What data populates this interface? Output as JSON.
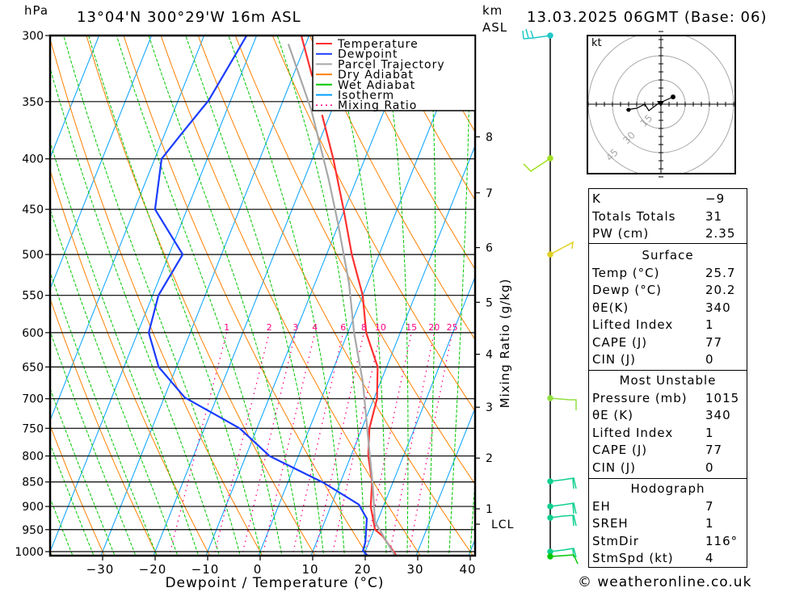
{
  "header": {
    "pressure_unit": "hPa",
    "location": "13°04'N 300°29'W 16m ASL",
    "height_unit": "km",
    "height_ref": "ASL",
    "datetime": "13.03.2025 06GMT (Base: 06)"
  },
  "chart_data": {
    "type": "line",
    "title": "13°04'N 300°29'W 16m ASL",
    "xlabel": "Dewpoint / Temperature (°C)",
    "ylabel": "hPa",
    "right_label": "Mixing Ratio (g/kg)",
    "pressure_ticks": [
      "300",
      "350",
      "400",
      "450",
      "500",
      "550",
      "600",
      "650",
      "700",
      "750",
      "800",
      "850",
      "900",
      "950",
      "1000"
    ],
    "temp_ticks": [
      "−30",
      "−20",
      "−10",
      "0",
      "10",
      "20",
      "30",
      "40"
    ],
    "temp_tick_values": [
      -30,
      -20,
      -10,
      0,
      10,
      20,
      30,
      40
    ],
    "xlim": [
      -40,
      41
    ],
    "ylim_hpa": [
      1010,
      300
    ],
    "grid": true,
    "legend_position": "top-right",
    "legend": [
      {
        "name": "Temperature",
        "color": "#ff3030",
        "style": "solid"
      },
      {
        "name": "Dewpoint",
        "color": "#1a3cff",
        "style": "solid"
      },
      {
        "name": "Parcel Trajectory",
        "color": "#a8a8a8",
        "style": "solid"
      },
      {
        "name": "Dry Adiabat",
        "color": "#ff8000",
        "style": "solid"
      },
      {
        "name": "Wet Adiabat",
        "color": "#00c800",
        "style": "solid"
      },
      {
        "name": "Isotherm",
        "color": "#00a0ff",
        "style": "solid"
      },
      {
        "name": "Mixing Ratio",
        "color": "#ff0080",
        "style": "dotted"
      }
    ],
    "series": [
      {
        "name": "Temperature",
        "color": "#ff3030",
        "segments": [
          [
            [
              300,
              -31.5
            ],
            [
              330,
              -26.3
            ]
          ],
          [
            [
              361,
              -21.5
            ],
            [
              400,
              -16.0
            ],
            [
              450,
              -10.2
            ],
            [
              500,
              -5.2
            ],
            [
              550,
              0.0
            ],
            [
              600,
              3.5
            ],
            [
              650,
              8.3
            ],
            [
              700,
              10.6
            ],
            [
              750,
              11.4
            ],
            [
              800,
              13.3
            ],
            [
              850,
              16.0
            ],
            [
              900,
              17.6
            ],
            [
              950,
              20.2
            ],
            [
              965,
              22.2
            ],
            [
              1010,
              26.3
            ]
          ]
        ]
      },
      {
        "name": "Dewpoint",
        "color": "#1a3cff",
        "segments": [
          [
            [
              300,
              -41.9
            ],
            [
              349,
              -44.2
            ],
            [
              376,
              -46.7
            ],
            [
              400,
              -48.7
            ],
            [
              450,
              -46.1
            ],
            [
              500,
              -37.4
            ],
            [
              550,
              -38.9
            ],
            [
              600,
              -37.9
            ],
            [
              650,
              -33.4
            ],
            [
              698,
              -26.1
            ],
            [
              750,
              -13.3
            ],
            [
              800,
              -5.5
            ],
            [
              852,
              6.9
            ],
            [
              896,
              15.2
            ],
            [
              926,
              17.8
            ],
            [
              978,
              19.3
            ],
            [
              998,
              19.5
            ],
            [
              1010,
              20.8
            ]
          ]
        ]
      },
      {
        "name": "Parcel Trajectory",
        "color": "#a8a8a8",
        "segments": [
          [
            [
              306,
              -33.3
            ],
            [
              357,
              -23.9
            ],
            [
              419,
              -15.4
            ],
            [
              464,
              -10.3
            ],
            [
              535,
              -3.5
            ],
            [
              600,
              1.2
            ],
            [
              673,
              6.6
            ],
            [
              771,
              12.1
            ],
            [
              855,
              16.3
            ],
            [
              933,
              19.6
            ],
            [
              947,
              20.8
            ],
            [
              1010,
              26.0
            ]
          ]
        ]
      }
    ],
    "mixing_ratio_labels": [
      "1",
      "2",
      "3",
      "4",
      "6",
      "8",
      "10",
      "15",
      "20",
      "25"
    ],
    "mixing_ratio_values": [
      1,
      2,
      3,
      4,
      6,
      8,
      10,
      15,
      20,
      25
    ],
    "km_ticks": [
      {
        "label": "8",
        "p": 380
      },
      {
        "label": "7",
        "p": 433
      },
      {
        "label": "6",
        "p": 492
      },
      {
        "label": "5",
        "p": 559
      },
      {
        "label": "4",
        "p": 631
      },
      {
        "label": "3",
        "p": 714
      },
      {
        "label": "2",
        "p": 804
      },
      {
        "label": "1",
        "p": 905
      },
      {
        "label": "LCL",
        "p": 938
      }
    ]
  },
  "hodograph": {
    "unit": "kt",
    "ring_labels": [
      "15",
      "30",
      "45"
    ],
    "ring_values": [
      15,
      30,
      45
    ],
    "trace_kt": [
      [
        7.5,
        4.5
      ],
      [
        -1.5,
        0.5
      ],
      [
        -7.5,
        -4
      ],
      [
        -10,
        0
      ],
      [
        -15,
        -2.5
      ],
      [
        -21.5,
        -3.5
      ]
    ]
  },
  "indices": {
    "general": [
      {
        "label": "K",
        "value": "−9"
      },
      {
        "label": "Totals Totals",
        "value": "31"
      },
      {
        "label": "PW (cm)",
        "value": "2.35"
      }
    ],
    "surface": {
      "title": "Surface",
      "rows": [
        {
          "label": "Temp (°C)",
          "value": "25.7"
        },
        {
          "label": "Dewp (°C)",
          "value": "20.2"
        },
        {
          "label": "θE(K)",
          "value": "340"
        },
        {
          "label": "Lifted Index",
          "value": "1"
        },
        {
          "label": "CAPE (J)",
          "value": "77"
        },
        {
          "label": "CIN (J)",
          "value": "0"
        }
      ]
    },
    "most_unstable": {
      "title": "Most Unstable",
      "rows": [
        {
          "label": "Pressure (mb)",
          "value": "1015"
        },
        {
          "label": "θE (K)",
          "value": "340"
        },
        {
          "label": "Lifted Index",
          "value": "1"
        },
        {
          "label": "CAPE (J)",
          "value": "77"
        },
        {
          "label": "CIN (J)",
          "value": "0"
        }
      ]
    },
    "hodograph": {
      "title": "Hodograph",
      "rows": [
        {
          "label": "EH",
          "value": "7"
        },
        {
          "label": "SREH",
          "value": "1"
        },
        {
          "label": "StmDir",
          "value": "116°"
        },
        {
          "label": "StmSpd (kt)",
          "value": "4"
        }
      ]
    }
  },
  "footer": {
    "copyright": "© weatheronline.co.uk"
  }
}
